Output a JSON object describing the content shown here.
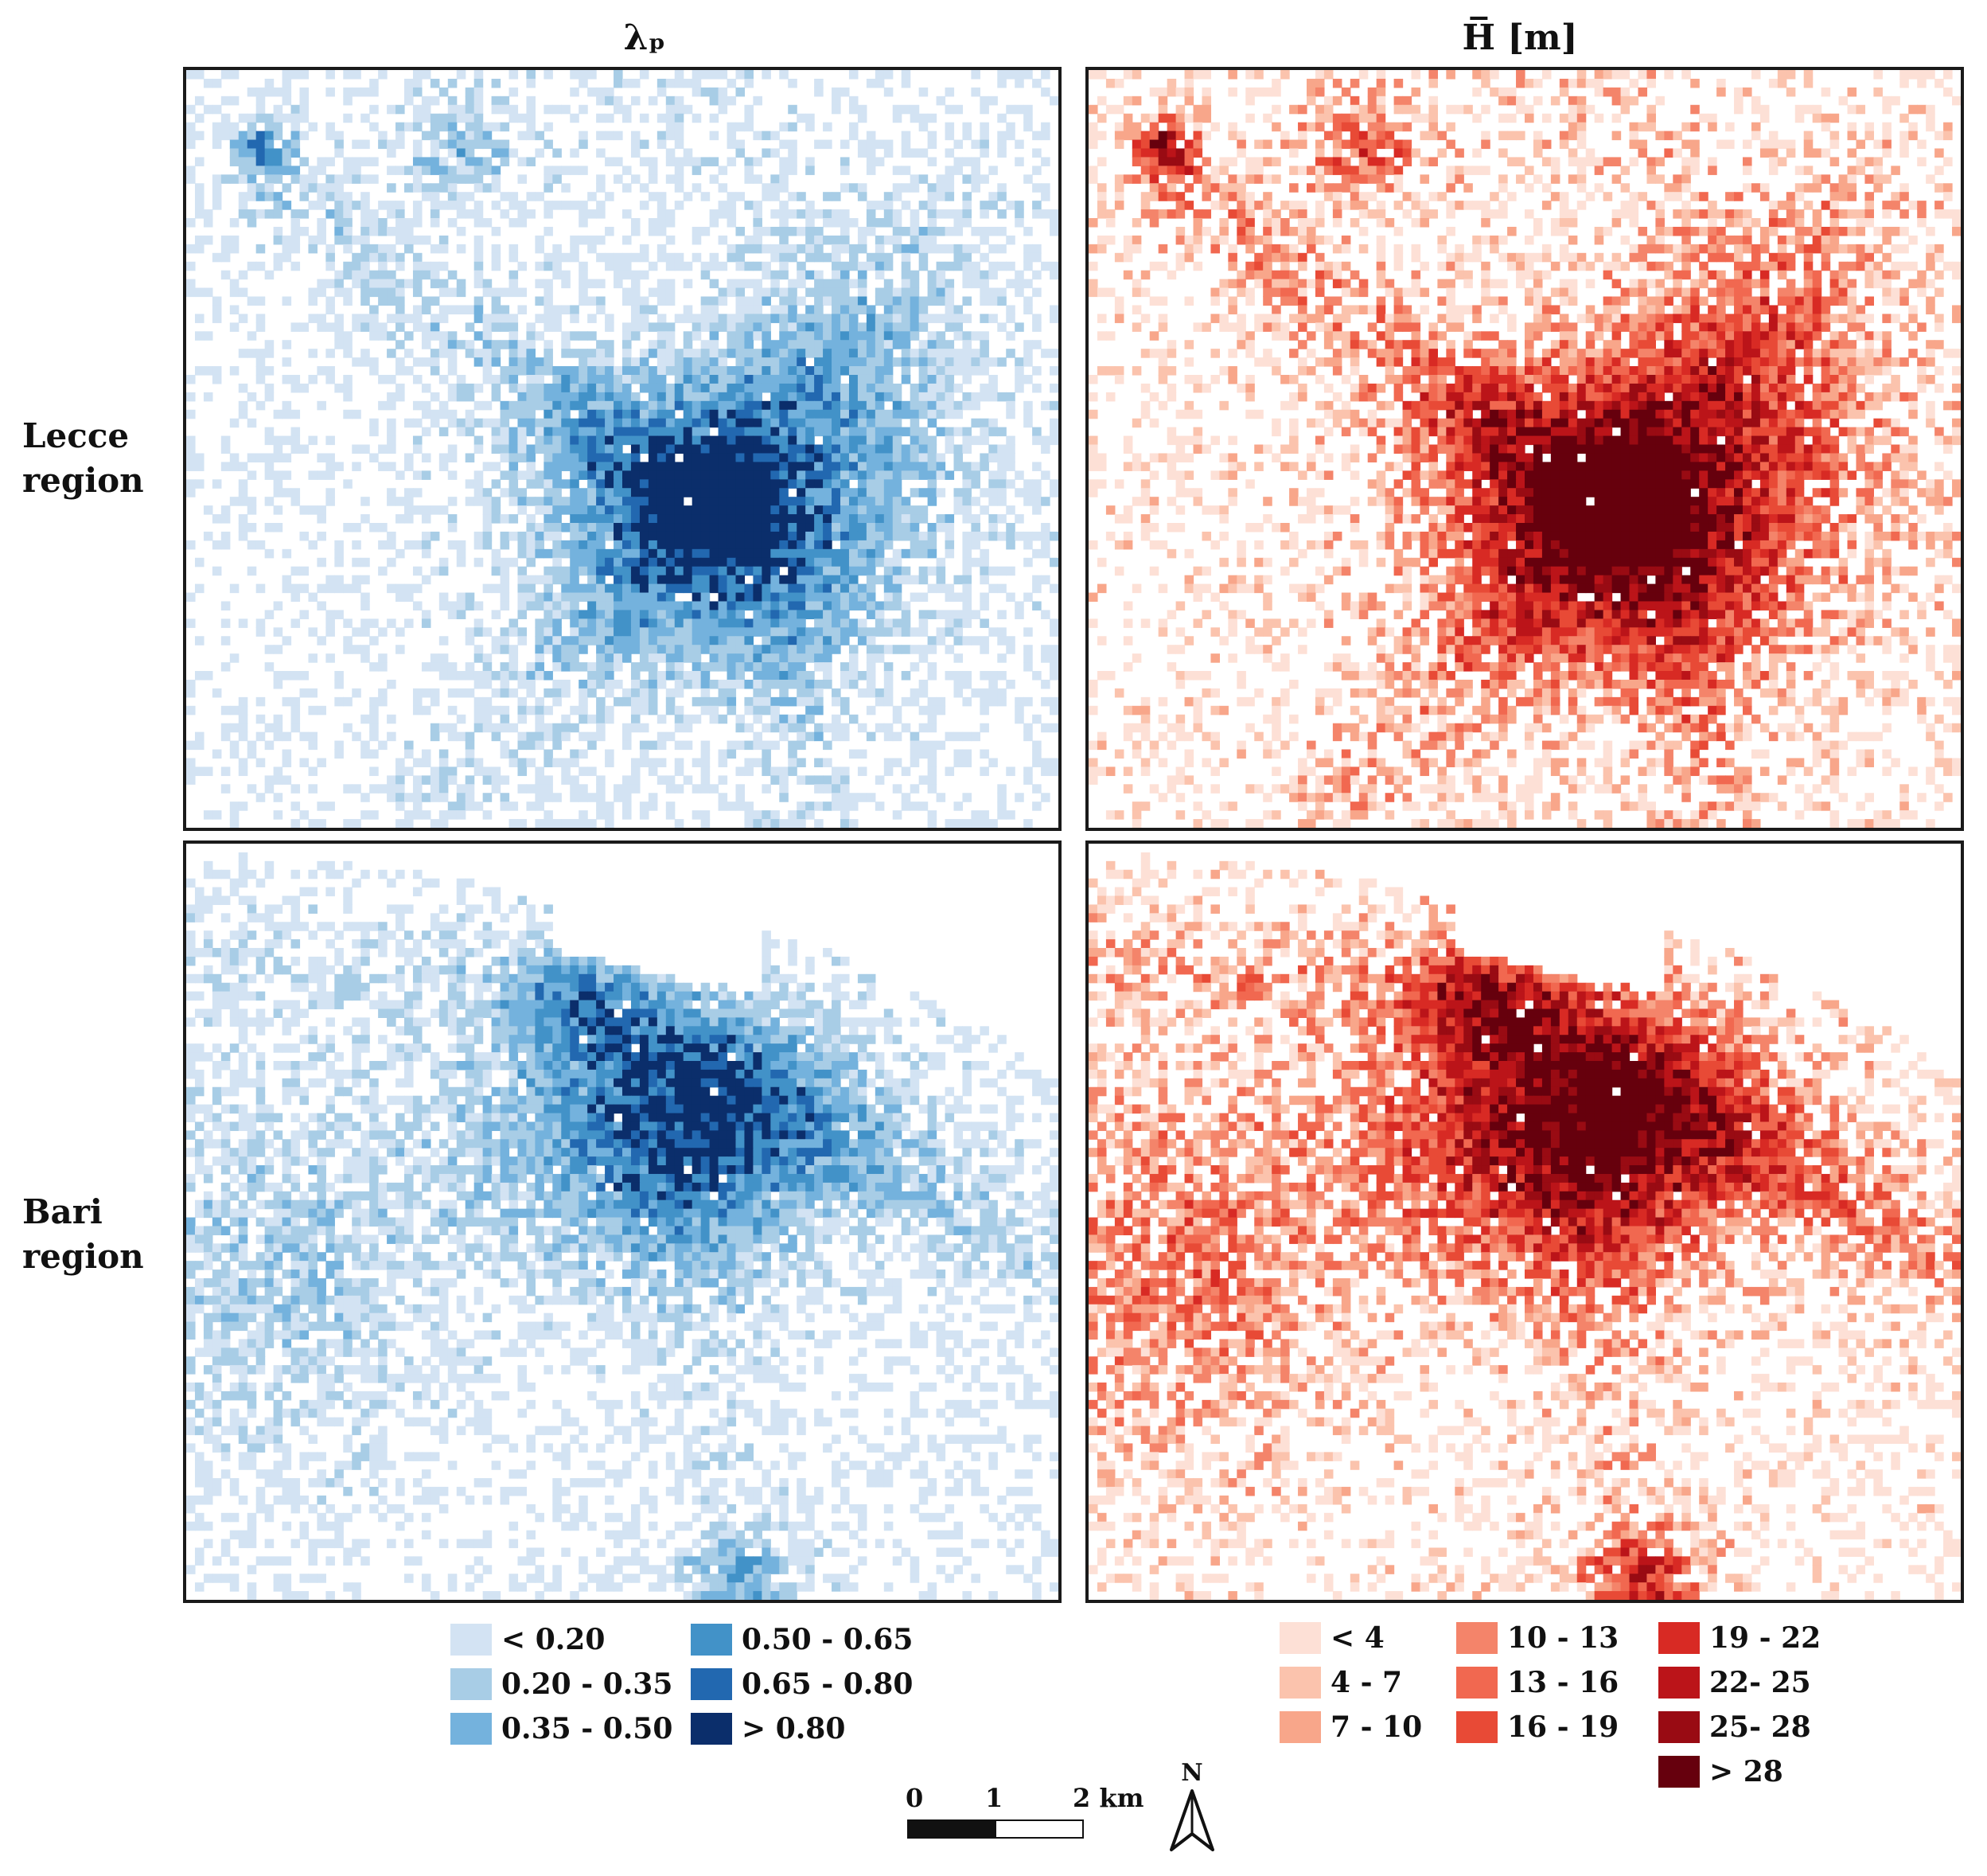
{
  "figure": {
    "col_titles": [
      "λₚ",
      "H̅ [m]"
    ],
    "row_labels": [
      [
        "Lecce",
        "region"
      ],
      [
        "Bari",
        "region"
      ]
    ],
    "panels": [
      {
        "name": "lecce-lambda-panel",
        "variable": "lambda_p",
        "region": "Lecce",
        "palette": "blue"
      },
      {
        "name": "lecce-height-panel",
        "variable": "mean_height",
        "region": "Lecce",
        "palette": "red"
      },
      {
        "name": "bari-lambda-panel",
        "variable": "lambda_p",
        "region": "Bari",
        "palette": "blue"
      },
      {
        "name": "bari-height-panel",
        "variable": "mean_height",
        "region": "Bari",
        "palette": "red"
      }
    ]
  },
  "legend_lambda": {
    "entries": [
      {
        "label": "< 0.20",
        "color": "#d3e3f3"
      },
      {
        "label": "0.20 - 0.35",
        "color": "#a8cde6"
      },
      {
        "label": "0.35 - 0.50",
        "color": "#74b2dd"
      },
      {
        "label": "0.50 - 0.65",
        "color": "#4292c8"
      },
      {
        "label": "0.65 - 0.80",
        "color": "#2268b0"
      },
      {
        "label": "> 0.80",
        "color": "#0b2e6b"
      }
    ]
  },
  "legend_height": {
    "entries": [
      {
        "label": "< 4",
        "color": "#fde0d6"
      },
      {
        "label": "4 - 7",
        "color": "#fbc3ad"
      },
      {
        "label": "7 - 10",
        "color": "#f8a68a"
      },
      {
        "label": "10 - 13",
        "color": "#f4846a"
      },
      {
        "label": "13 - 16",
        "color": "#f16850"
      },
      {
        "label": "16 - 19",
        "color": "#e84a36"
      },
      {
        "label": "19 - 22",
        "color": "#d82a24"
      },
      {
        "label": "22- 25",
        "color": "#bb1419"
      },
      {
        "label": "25- 28",
        "color": "#990b13"
      },
      {
        "label": "> 28",
        "color": "#66000d"
      }
    ]
  },
  "scale_bar": {
    "labels": [
      "0",
      "1",
      "2 km"
    ]
  },
  "north_arrow": {
    "label": "N"
  }
}
